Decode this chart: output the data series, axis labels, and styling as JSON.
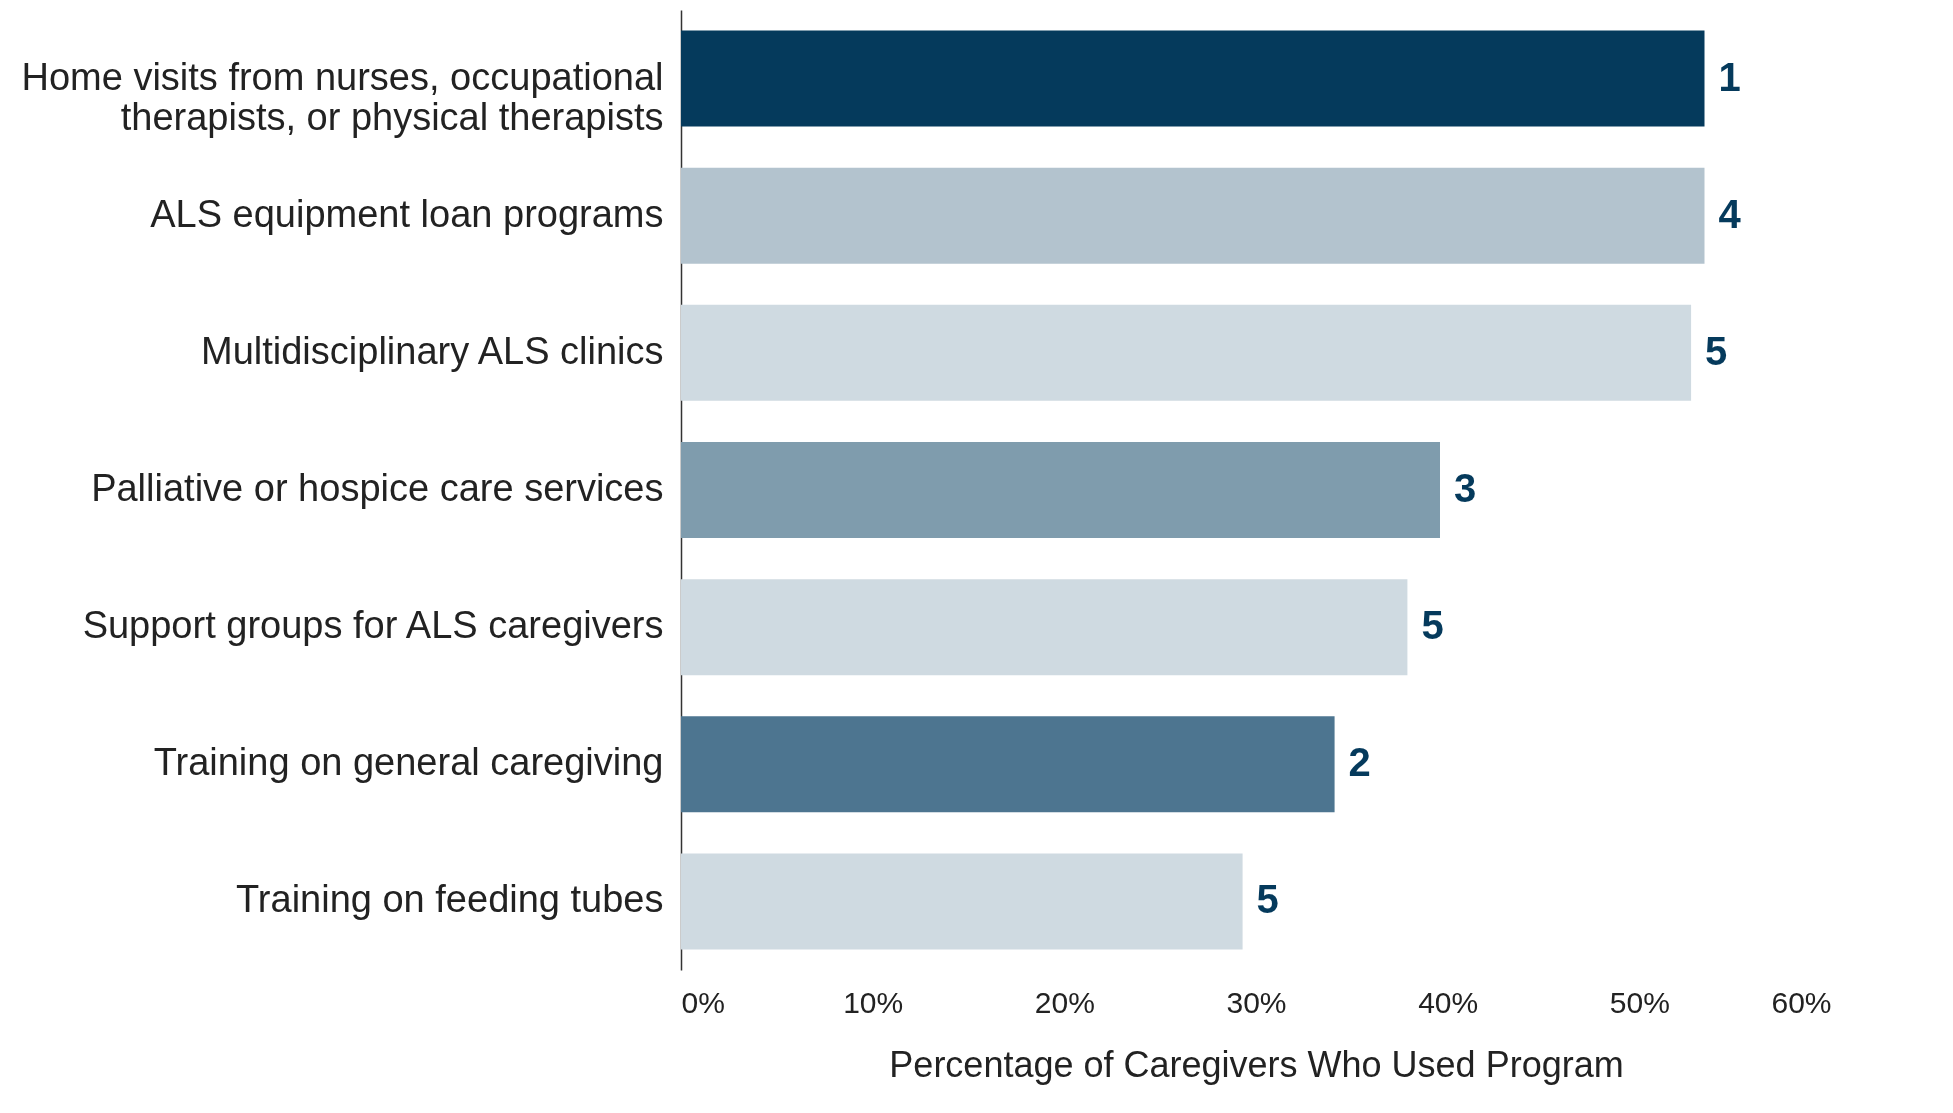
{
  "chart_data": {
    "type": "bar",
    "orientation": "horizontal",
    "xlabel": "Percentage of Caregivers Who Used Program",
    "categories": [
      "Home visits from nurses, occupational therapists, or physical therapists",
      "ALS equipment loan programs",
      "Multidisciplinary ALS clinics",
      "Palliative or hospice care services",
      "Support groups for ALS caregivers",
      "Training on general caregiving",
      "Training on feeding tubes"
    ],
    "values": [
      53.4,
      53.4,
      52.7,
      39.6,
      37.9,
      34.1,
      29.3
    ],
    "colors": [
      "#053a5c",
      "#b3c3ce",
      "#cfdae1",
      "#7f9cad",
      "#cfdae1",
      "#4d7590",
      "#cfdae1"
    ],
    "annotations": [
      {
        "text": "1",
        "x": 53.4,
        "y": "Home visits from nurses, occupational therapists, or physical therapists"
      },
      {
        "text": "4",
        "x": 53.4,
        "y": "ALS equipment loan programs"
      },
      {
        "text": "5",
        "x": 52.7,
        "y": "Multidisciplinary ALS clinics"
      },
      {
        "text": "3",
        "x": 39.6,
        "y": "Palliative or hospice care services"
      },
      {
        "text": "5",
        "x": 37.9,
        "y": "Support groups for ALS caregivers"
      },
      {
        "text": "2",
        "x": 34.1,
        "y": "Training on general caregiving"
      },
      {
        "text": "5",
        "x": 29.3,
        "y": "Training on feeding tubes"
      }
    ],
    "xlim": [
      0,
      60
    ],
    "xticks": [
      {
        "value": 0,
        "label": "0%"
      },
      {
        "value": 10,
        "label": "10%"
      },
      {
        "value": 20,
        "label": "20%"
      },
      {
        "value": 30,
        "label": "30%"
      },
      {
        "value": 40,
        "label": "40%"
      },
      {
        "value": 50,
        "label": "50%"
      },
      {
        "value": 60,
        "label": "60%"
      }
    ],
    "grid": false
  }
}
